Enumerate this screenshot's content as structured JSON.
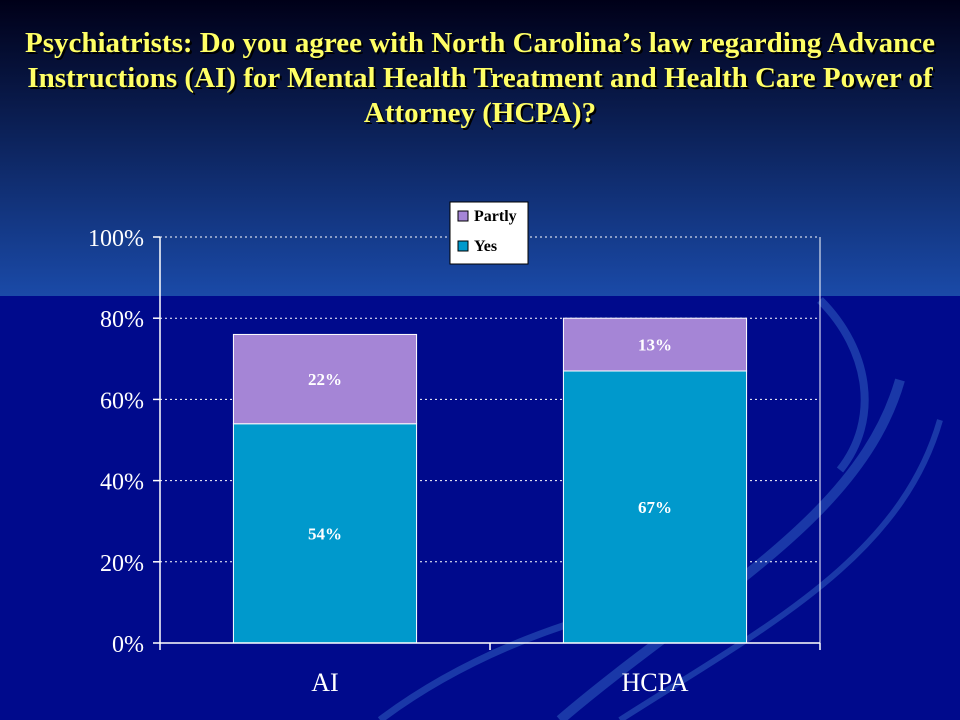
{
  "slide": {
    "title": "Psychiatrists:  Do you agree with North Carolina’s law regarding Advance Instructions (AI) for Mental Health Treatment and Health Care Power of Attorney (HCPA)?"
  },
  "colors": {
    "background_top": "#0a2a6e",
    "background_bottom": "#000a8c",
    "title": "#ffff66",
    "yes": "#0099cc",
    "partly": "#a585d6",
    "gridline": "#ffffff",
    "legend_bg": "#ffffff"
  },
  "chart_data": {
    "type": "bar",
    "stacked": true,
    "categories": [
      "AI",
      "HCPA"
    ],
    "series": [
      {
        "name": "Yes",
        "values": [
          54,
          67
        ],
        "labels": [
          "54%",
          "67%"
        ]
      },
      {
        "name": "Partly",
        "values": [
          22,
          13
        ],
        "labels": [
          "22%",
          "13%"
        ]
      }
    ],
    "y_ticks": [
      "0%",
      "20%",
      "40%",
      "60%",
      "80%",
      "100%"
    ],
    "ylim": [
      0,
      100
    ],
    "grid": true,
    "legend_position": "top-center",
    "legend_order": [
      "Partly",
      "Yes"
    ]
  }
}
